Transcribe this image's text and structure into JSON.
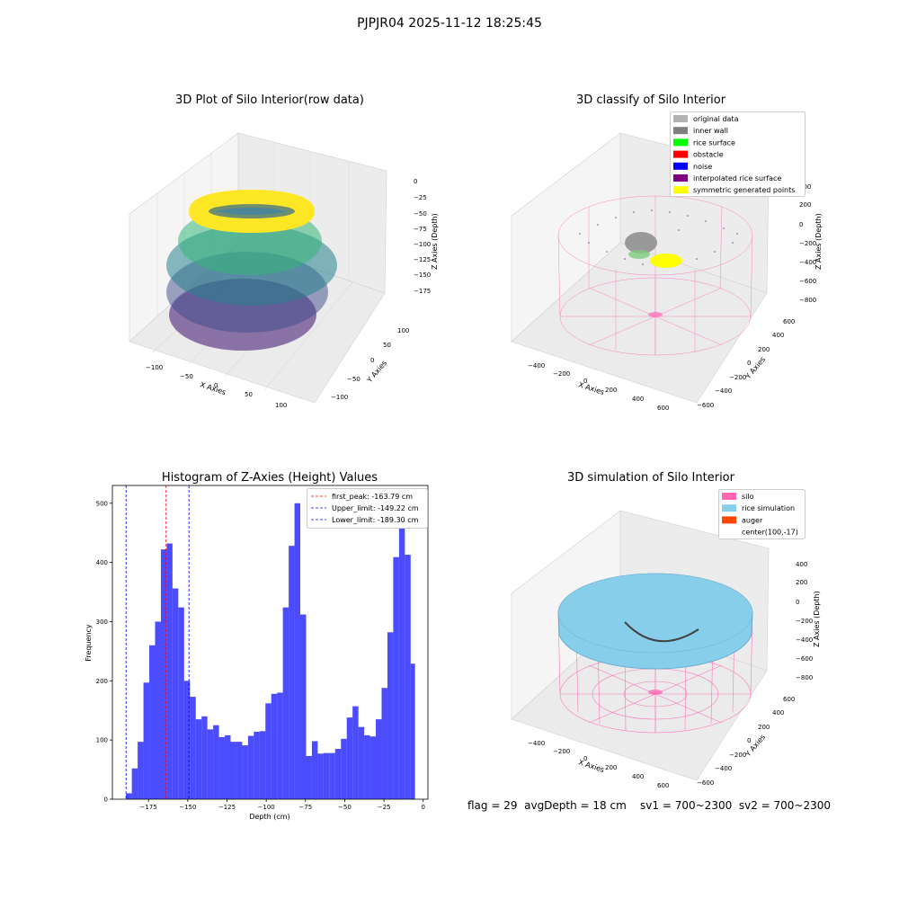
{
  "figure": {
    "suptitle": "PJPJR04 2025-11-12 18:25:45",
    "footer": "flag = 29  avgDepth = 18 cm    sv1 = 700~2300  sv2 = 700~2300"
  },
  "chart_data": [
    {
      "type": "scatter",
      "title": "3D Plot of Silo Interior(row data)",
      "xlabel": "X Axies",
      "ylabel": "Y Axies",
      "zlabel": "Z Axies (Depth)",
      "xticks": [
        "−100",
        "−50",
        "0",
        "50",
        "100"
      ],
      "yticks": [
        "100",
        "50",
        "0",
        "−50",
        "−100"
      ],
      "zticks": [
        "0",
        "−25",
        "−50",
        "−75",
        "−100",
        "−125",
        "−150",
        "−175"
      ],
      "colormap": "viridis"
    },
    {
      "type": "scatter",
      "title": "3D classify of Silo Interior",
      "xlabel": "X Axies",
      "ylabel": "Y Axies",
      "zlabel": "Z Axies (Depth)",
      "xticks": [
        "−400",
        "−200",
        "0",
        "200",
        "400",
        "600"
      ],
      "yticks": [
        "600",
        "400",
        "200",
        "0",
        "−200",
        "−400",
        "−600"
      ],
      "zticks": [
        "400",
        "200",
        "0",
        "−200",
        "−400",
        "−600",
        "−800"
      ],
      "legend": [
        {
          "label": "original data",
          "color": "#b3b3b3"
        },
        {
          "label": "inner wall",
          "color": "#808080"
        },
        {
          "label": "rice surface",
          "color": "#00ff00"
        },
        {
          "label": "obstacle",
          "color": "#ff0000"
        },
        {
          "label": "noise",
          "color": "#0000ff"
        },
        {
          "label": "interpolated rice surface",
          "color": "#800080"
        },
        {
          "label": "symmetric generated points",
          "color": "#ffff00"
        }
      ],
      "legend_position": "upper-right"
    },
    {
      "type": "bar",
      "title": "Histogram of Z-Axies (Height) Values",
      "xlabel": "Depth (cm)",
      "ylabel": "Frequency",
      "xlim": [
        -198,
        3
      ],
      "ylim": [
        0,
        530
      ],
      "bin_width": 3.7,
      "xticks": [
        -175,
        -150,
        -125,
        -100,
        -75,
        -50,
        -25,
        0
      ],
      "xtick_labels": [
        "−175",
        "−150",
        "−125",
        "−100",
        "−75",
        "−50",
        "−25",
        "0"
      ],
      "yticks": [
        0,
        100,
        200,
        300,
        400,
        500
      ],
      "bar_color": "#0000ff",
      "bins_start": [
        -189.3,
        -185.6,
        -181.9,
        -178.2,
        -174.5,
        -170.8,
        -167.1,
        -163.4,
        -159.7,
        -156.0,
        -152.3,
        -148.6,
        -144.9,
        -141.2,
        -137.5,
        -133.8,
        -130.1,
        -126.4,
        -122.7,
        -119.0,
        -115.3,
        -111.6,
        -107.9,
        -104.2,
        -100.5,
        -96.8,
        -93.1,
        -89.4,
        -85.7,
        -82.0,
        -78.3,
        -74.6,
        -70.9,
        -67.2,
        -63.5,
        -59.8,
        -56.1,
        -52.4,
        -48.7,
        -45.0,
        -41.3,
        -37.6,
        -33.9,
        -30.2,
        -26.5,
        -22.8,
        -19.1,
        -15.4,
        -11.7
      ],
      "counts": [
        10,
        52,
        97,
        197,
        260,
        300,
        422,
        432,
        356,
        324,
        200,
        173,
        135,
        140,
        118,
        125,
        105,
        108,
        97,
        97,
        91,
        107,
        114,
        115,
        162,
        178,
        180,
        324,
        428,
        500,
        312,
        73,
        98,
        77,
        78,
        78,
        85,
        102,
        138,
        157,
        122,
        108,
        106,
        135,
        188,
        282,
        409,
        495,
        413
      ],
      "extra_bar": {
        "x": -11.7,
        "value": 229
      },
      "vlines": [
        {
          "label": "first_peak: -163.79 cm",
          "x": -163.79,
          "color": "#ff0000"
        },
        {
          "label": "Upper_limit: -149.22 cm",
          "x": -149.22,
          "color": "#0000ff"
        },
        {
          "label": "Lower_limit: -189.30 cm",
          "x": -189.3,
          "color": "#0000ff"
        }
      ],
      "legend_position": "upper-right"
    },
    {
      "type": "scatter",
      "title": "3D simulation of Silo Interior",
      "xlabel": "X Axies",
      "ylabel": "Y Axies",
      "zlabel": "Z Axies (Depth)",
      "xticks": [
        "−400",
        "−200",
        "0",
        "200",
        "400",
        "600"
      ],
      "yticks": [
        "600",
        "400",
        "200",
        "0",
        "−200",
        "−400",
        "−600"
      ],
      "zticks": [
        "400",
        "200",
        "0",
        "−200",
        "−400",
        "−600",
        "−800"
      ],
      "legend": [
        {
          "label": "silo",
          "color": "#ff69b4"
        },
        {
          "label": "rice simulation",
          "color": "#87ceeb"
        },
        {
          "label": "auger",
          "color": "#ff4500"
        },
        {
          "label": "center(100,-17)",
          "color": ""
        }
      ],
      "legend_position": "upper-right"
    }
  ]
}
